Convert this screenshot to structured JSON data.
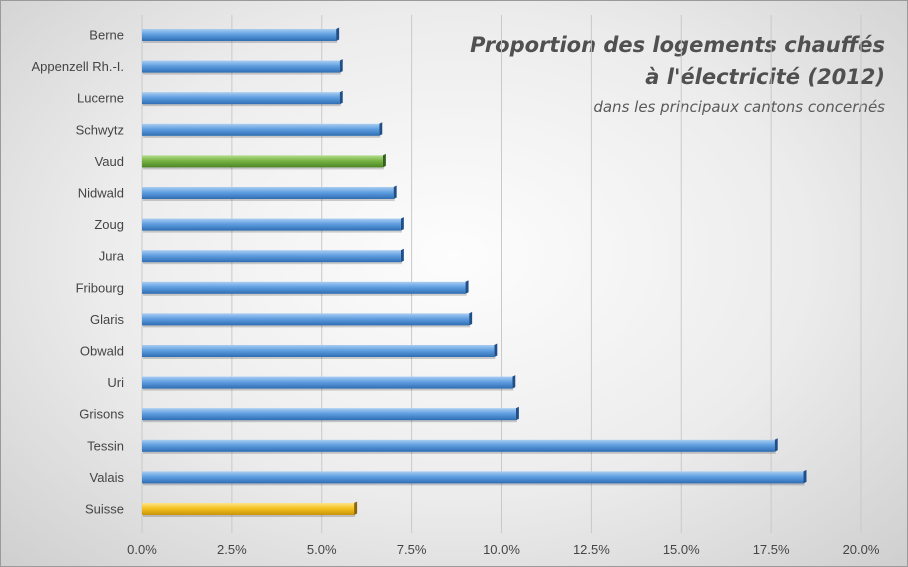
{
  "chart_data": {
    "type": "bar",
    "orientation": "horizontal",
    "title": "Proportion des logements chauffés\nà l'électricité (2012)",
    "subtitle": "dans les principaux cantons concernés",
    "categories": [
      "Berne",
      "Appenzell Rh.-I.",
      "Lucerne",
      "Schwytz",
      "Vaud",
      "Nidwald",
      "Zoug",
      "Jura",
      "Fribourg",
      "Glaris",
      "Obwald",
      "Uri",
      "Grisons",
      "Tessin",
      "Valais",
      "Suisse"
    ],
    "values": [
      5.4,
      5.5,
      5.5,
      6.6,
      6.7,
      7.0,
      7.2,
      7.2,
      9.0,
      9.1,
      9.8,
      10.3,
      10.4,
      17.6,
      18.4,
      5.9
    ],
    "xlim": [
      0,
      20
    ],
    "xticks": [
      0,
      2.5,
      5,
      7.5,
      10,
      12.5,
      15,
      17.5,
      20
    ],
    "tick_labels": [
      "0.0%",
      "2.5%",
      "5.0%",
      "7.5%",
      "10.0%",
      "12.5%",
      "15.0%",
      "17.5%",
      "20.0%"
    ],
    "grid": "vertical",
    "highlight": {
      "Vaud": "green",
      "Suisse": "gold"
    },
    "colors": {
      "default": "#4f8fd6",
      "green": "#6cab3a",
      "gold": "#f2bc17"
    }
  }
}
